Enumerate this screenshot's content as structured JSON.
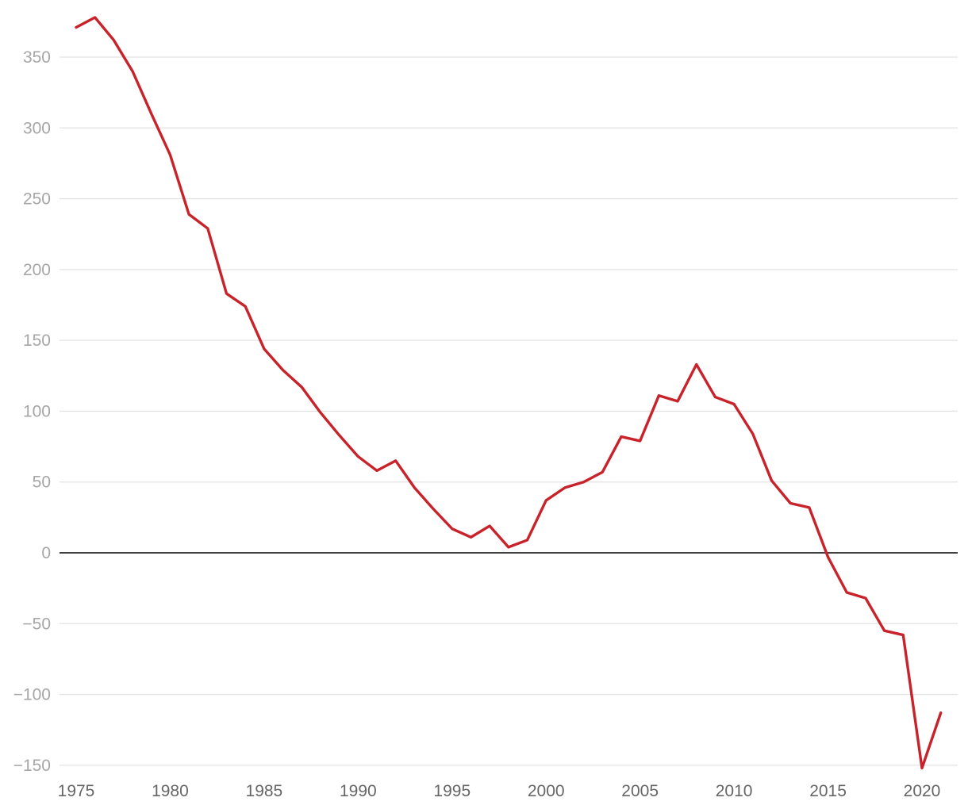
{
  "chart_data": {
    "type": "line",
    "title": "",
    "xlabel": "",
    "ylabel": "",
    "x": [
      1975,
      1976,
      1977,
      1978,
      1979,
      1980,
      1981,
      1982,
      1983,
      1984,
      1985,
      1986,
      1987,
      1988,
      1989,
      1990,
      1991,
      1992,
      1993,
      1994,
      1995,
      1996,
      1997,
      1998,
      1999,
      2000,
      2001,
      2002,
      2003,
      2004,
      2005,
      2006,
      2007,
      2008,
      2009,
      2010,
      2011,
      2012,
      2013,
      2014,
      2015,
      2016,
      2017,
      2018,
      2019,
      2020,
      2021
    ],
    "series": [
      {
        "color": "#c8222a",
        "values": [
          371,
          378,
          362,
          340,
          310,
          281,
          239,
          229,
          183,
          174,
          144,
          129,
          117,
          99,
          83,
          68,
          58,
          65,
          46,
          31,
          17,
          11,
          19,
          4,
          9,
          37,
          46,
          50,
          57,
          82,
          79,
          111,
          107,
          133,
          110,
          105,
          84,
          51,
          35,
          32,
          -3,
          -28,
          -32,
          -55,
          -58,
          -152,
          -113
        ]
      }
    ],
    "xlim": [
      1975,
      2021
    ],
    "ylim": [
      -150,
      375
    ],
    "yticks": [
      {
        "value": 350,
        "label": "350"
      },
      {
        "value": 300,
        "label": "300"
      },
      {
        "value": 250,
        "label": "250"
      },
      {
        "value": 200,
        "label": "200"
      },
      {
        "value": 150,
        "label": "150"
      },
      {
        "value": 100,
        "label": "100"
      },
      {
        "value": 50,
        "label": "50"
      },
      {
        "value": 0,
        "label": "0"
      },
      {
        "value": -50,
        "label": "−50"
      },
      {
        "value": -100,
        "label": "−100"
      },
      {
        "value": -150,
        "label": "−150"
      }
    ],
    "xticks": [
      {
        "value": 1975,
        "label": "1975"
      },
      {
        "value": 1980,
        "label": "1980"
      },
      {
        "value": 1985,
        "label": "1985"
      },
      {
        "value": 1990,
        "label": "1990"
      },
      {
        "value": 1995,
        "label": "1995"
      },
      {
        "value": 2000,
        "label": "2000"
      },
      {
        "value": 2005,
        "label": "2005"
      },
      {
        "value": 2010,
        "label": "2010"
      },
      {
        "value": 2015,
        "label": "2015"
      },
      {
        "value": 2020,
        "label": "2020"
      }
    ],
    "grid": true,
    "zero_line": true
  }
}
